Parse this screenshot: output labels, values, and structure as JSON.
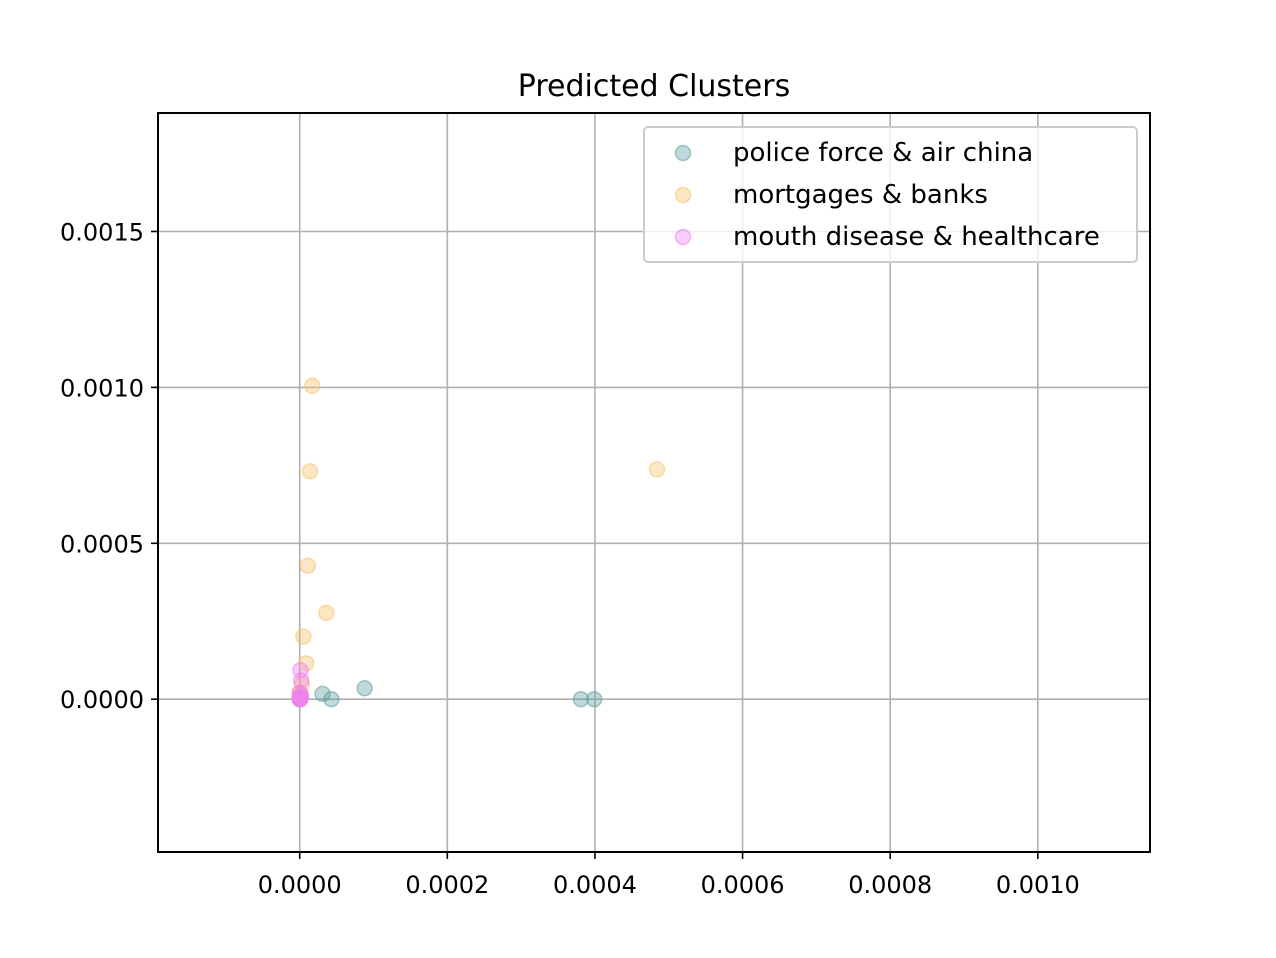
{
  "chart_data": {
    "type": "scatter",
    "title": "Predicted Clusters",
    "xlabel": "",
    "ylabel": "",
    "xlim": [
      -0.000192,
      0.001152
    ],
    "ylim": [
      -0.00049,
      0.00188
    ],
    "xticks": [
      0.0,
      0.0002,
      0.0004,
      0.0006,
      0.0008,
      0.001
    ],
    "xtick_labels": [
      "0.0000",
      "0.0002",
      "0.0004",
      "0.0006",
      "0.0008",
      "0.0010"
    ],
    "yticks": [
      0.0,
      0.0005,
      0.001,
      0.0015
    ],
    "ytick_labels": [
      "0.0000",
      "0.0005",
      "0.0010",
      "0.0015"
    ],
    "grid": true,
    "legend_position": "top-right",
    "series": [
      {
        "name": "police force & air china",
        "color": "#5f9ea0",
        "points": [
          [
            3.1e-05,
            1.7e-05
          ],
          [
            4.3e-05,
            0.0
          ],
          [
            8.8e-05,
            3.5e-05
          ],
          [
            0.000381,
            0.0
          ],
          [
            0.000399,
            0.0
          ],
          [
            0.0,
            0.0
          ]
        ]
      },
      {
        "name": "mortgages & banks",
        "color": "#f5c26b",
        "points": [
          [
            1.7e-05,
            0.001005
          ],
          [
            1.4e-05,
            0.000731
          ],
          [
            0.000484,
            0.000737
          ],
          [
            1.1e-05,
            0.000428
          ],
          [
            3.6e-05,
            0.000277
          ],
          [
            5e-06,
            0.000201
          ],
          [
            9e-06,
            0.000115
          ],
          [
            3e-06,
            4.8e-05
          ],
          [
            0.0,
            2.1e-05
          ]
        ]
      },
      {
        "name": "mouth disease & healthcare",
        "color": "#ee82ee",
        "points": [
          [
            1e-06,
            9.3e-05
          ],
          [
            2e-06,
            6e-05
          ],
          [
            0.0,
            2e-05
          ],
          [
            0.0,
            8e-06
          ],
          [
            0.0,
            3e-06
          ],
          [
            1e-06,
            0.0
          ],
          [
            0.0,
            0.0
          ],
          [
            2e-06,
            1.2e-05
          ],
          [
            1e-06,
            5e-06
          ]
        ]
      }
    ]
  }
}
